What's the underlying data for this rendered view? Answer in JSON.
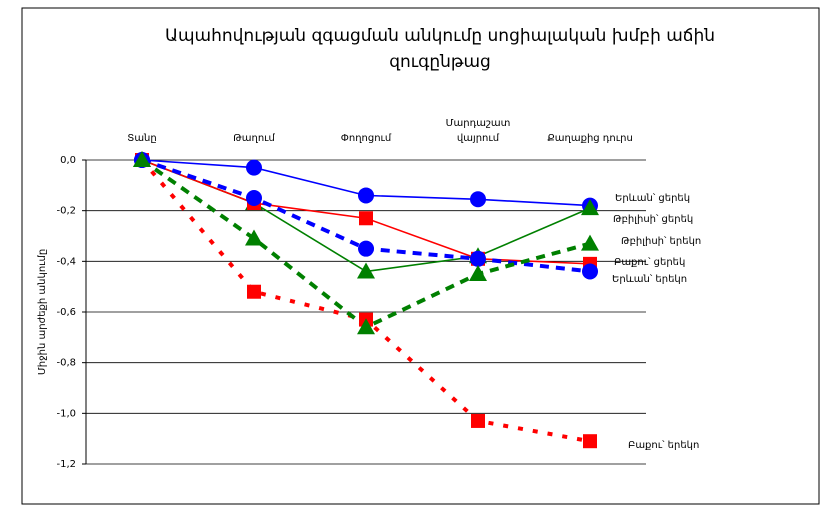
{
  "chart_data": {
    "type": "line",
    "title": [
      "Ապահովության զգացման անկումը սոցիալական խմբի աճին",
      "զուգընթաց"
    ],
    "y_label": "Միջին արժեքի անկումը",
    "categories": [
      "Տանը",
      "Թաղում",
      "Փողոցում",
      "Մարդաշատ վայրում",
      "Քաղաքից դուրս"
    ],
    "ylim": [
      -1.2,
      0
    ],
    "yticks": [
      {
        "value": 0,
        "label": "0,0"
      },
      {
        "value": -0.2,
        "label": "-0,2"
      },
      {
        "value": -0.4,
        "label": "-0,4"
      },
      {
        "value": -0.6,
        "label": "-0,6"
      },
      {
        "value": -0.8,
        "label": "-0,8"
      },
      {
        "value": -1.0,
        "label": "-1,0"
      },
      {
        "value": -1.2,
        "label": "-1,2"
      }
    ],
    "grid": true,
    "series": [
      {
        "name": "Բաքու՝ երեկո",
        "color": "#ff0000",
        "dash": "dotted",
        "marker": "square",
        "values": [
          0,
          -0.52,
          -0.63,
          -1.03,
          -1.11
        ]
      },
      {
        "name": "Երևան՝ ցերեկ",
        "color": "#0000ff",
        "dash": "solid",
        "marker": "circle",
        "values": [
          0,
          -0.03,
          -0.14,
          -0.155,
          -0.18
        ]
      },
      {
        "name": "Թբիլիսի՝ ցերեկ",
        "color": "#008000",
        "dash": "solid",
        "marker": "triangle",
        "values": [
          0,
          -0.17,
          -0.44,
          -0.38,
          -0.19
        ]
      },
      {
        "name": "Բաքու՝ ցերեկ",
        "color": "#ff0000",
        "dash": "solid",
        "marker": "square",
        "values": [
          0,
          -0.17,
          -0.23,
          -0.39,
          -0.41
        ]
      },
      {
        "name": "Երևան՝ երեկո",
        "color": "#0000ff",
        "dash": "dashed",
        "marker": "circle",
        "values": [
          0,
          -0.15,
          -0.35,
          -0.39,
          -0.44
        ]
      },
      {
        "name": "Թբիլիսի՝ երեկո",
        "color": "#008000",
        "dash": "dashed",
        "marker": "triangle",
        "values": [
          0,
          -0.31,
          -0.66,
          -0.45,
          -0.33
        ]
      }
    ]
  }
}
